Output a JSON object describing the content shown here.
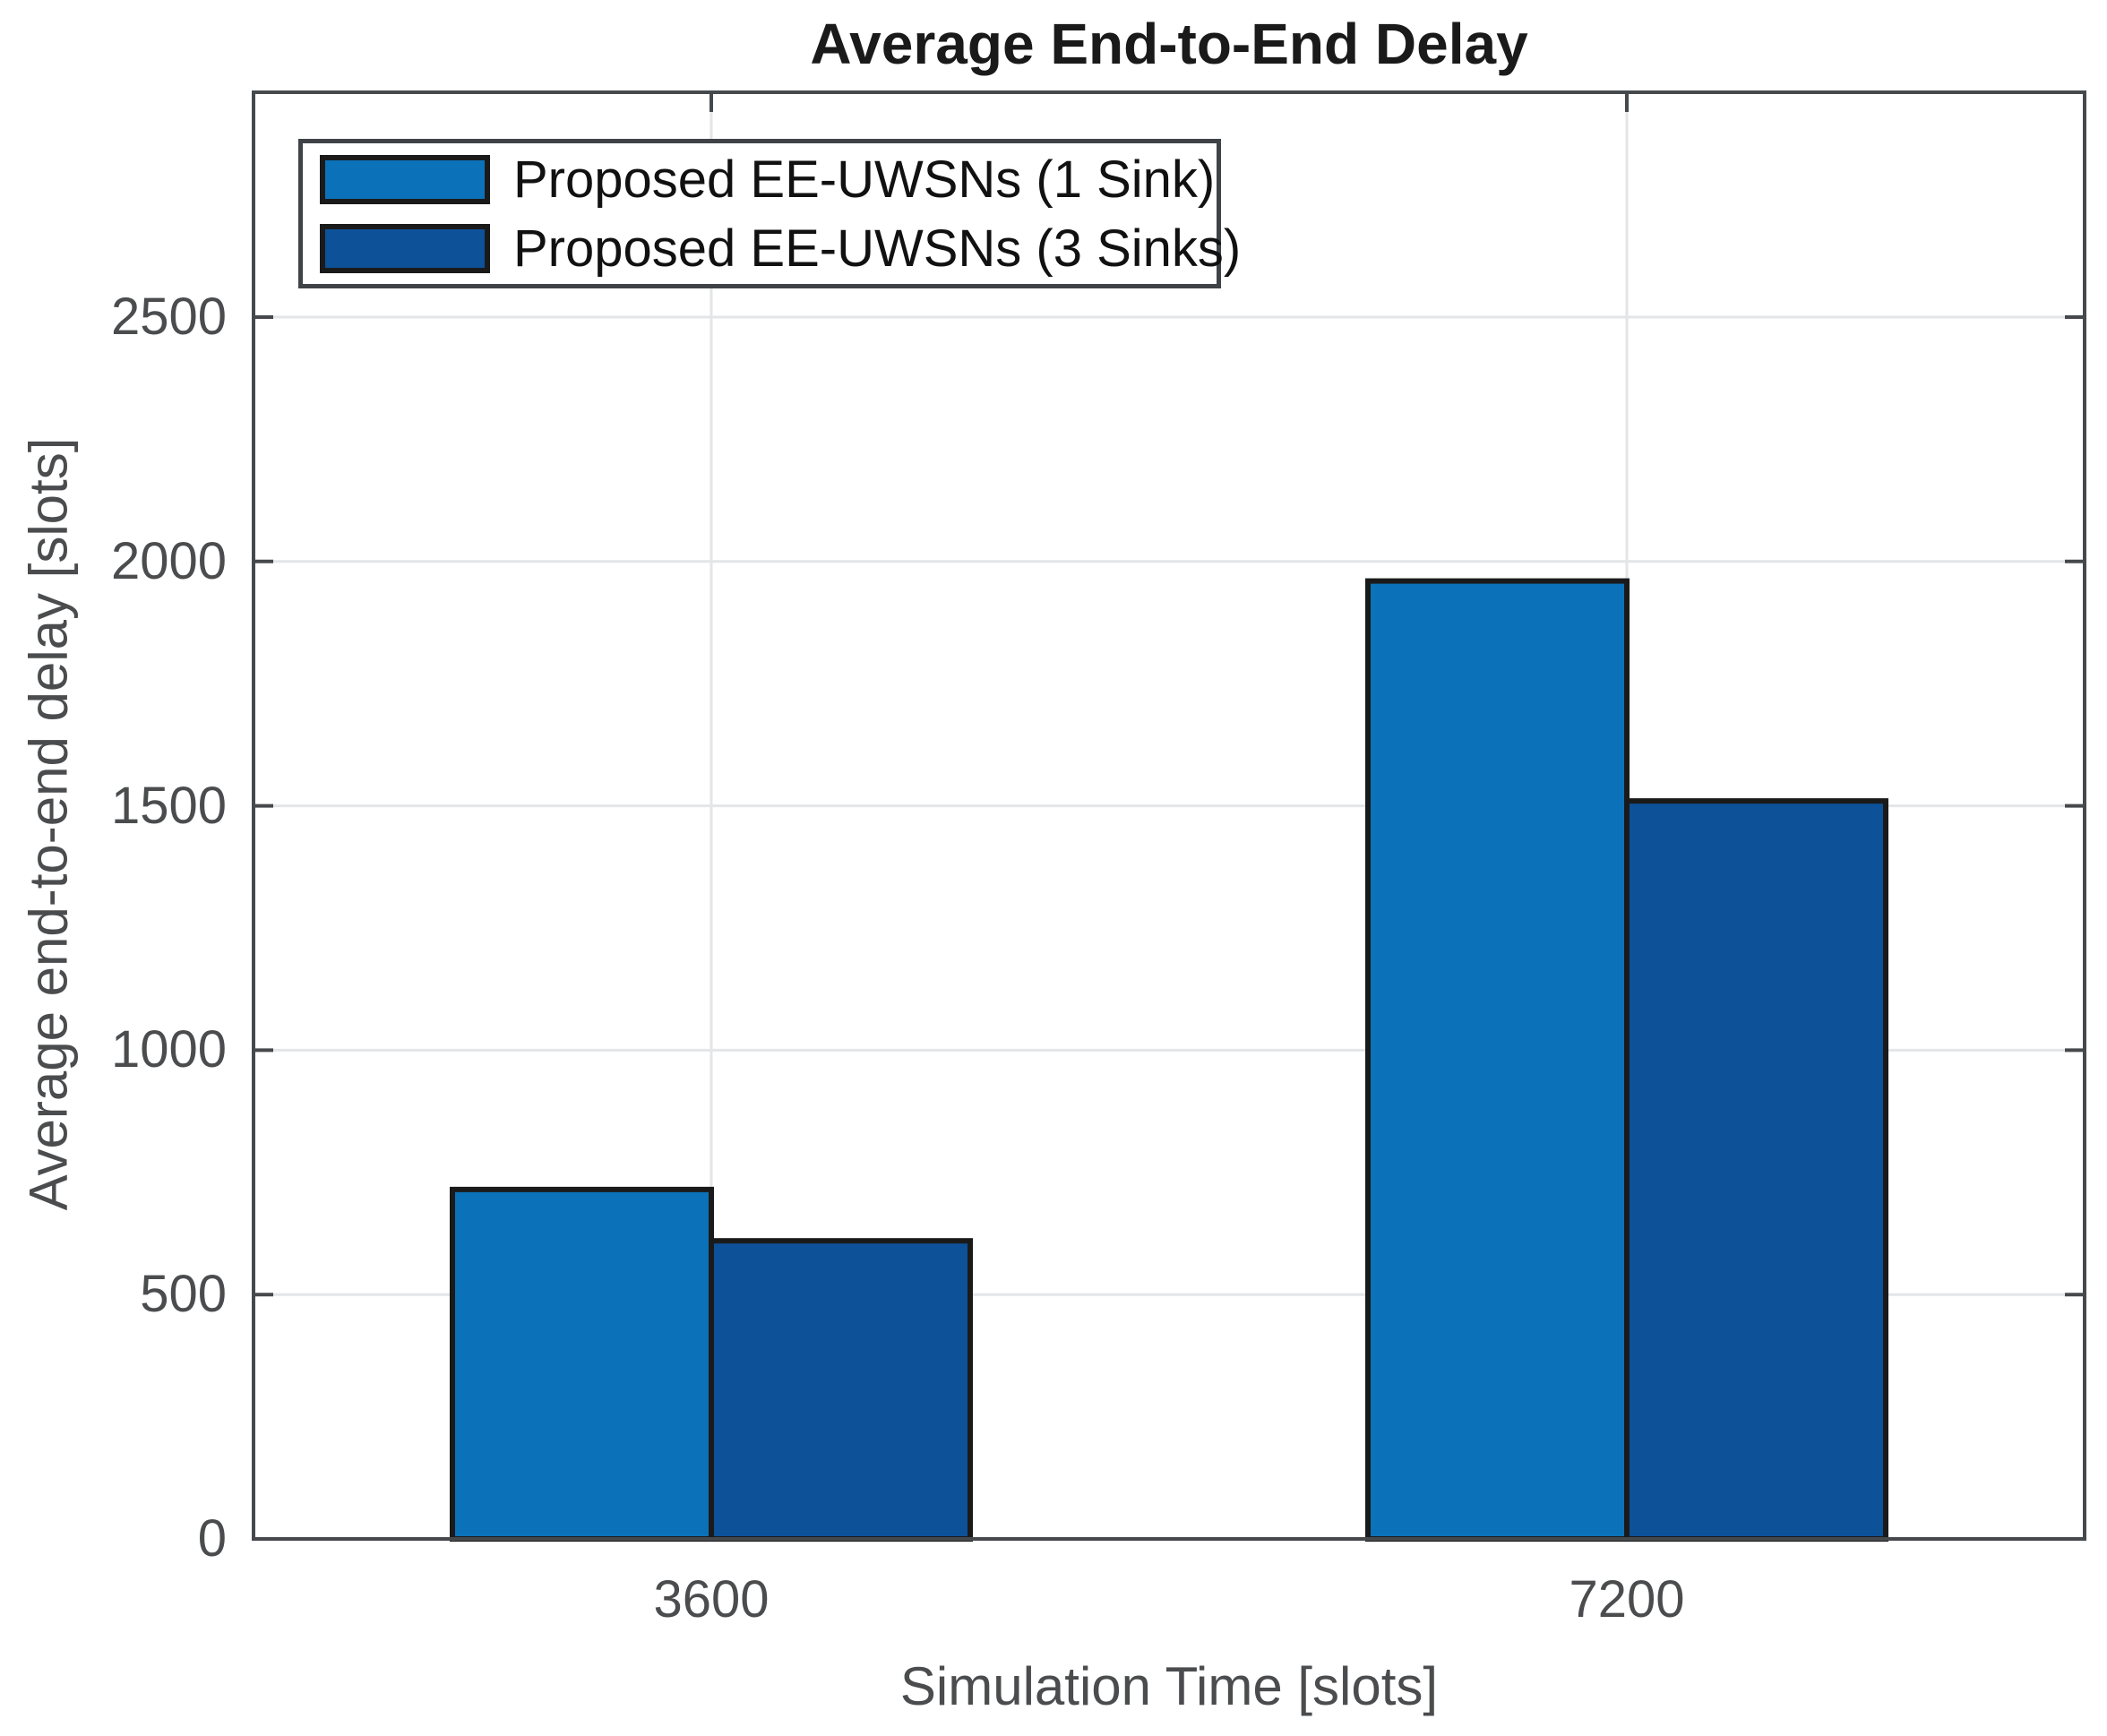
{
  "title": "Average End-to-End Delay",
  "chart_data": {
    "type": "bar",
    "title": "Average End-to-End Delay",
    "xlabel": "Simulation Time [slots]",
    "ylabel": "Average end-to-end delay [slots]",
    "categories": [
      "3600",
      "7200"
    ],
    "series": [
      {
        "name": "Proposed EE-UWSNs (1 Sink)",
        "color": "#0B72B9",
        "values": [
          715,
          1960
        ]
      },
      {
        "name": "Proposed EE-UWSNs (3 Sinks)",
        "color": "#0D5199",
        "values": [
          610,
          1510
        ]
      }
    ],
    "ylim": [
      0,
      2960
    ],
    "yticks": [
      0,
      500,
      1000,
      1500,
      2000,
      2500
    ],
    "grid": true,
    "legend_position": "top-left",
    "bar_edge_color": "#1a1a1a"
  },
  "colors": {
    "axis": "#46494c",
    "grid": "#e3e5e7",
    "tick_text": "#4a4c4e",
    "title_text": "#1a1a1a",
    "background": "#ffffff"
  }
}
